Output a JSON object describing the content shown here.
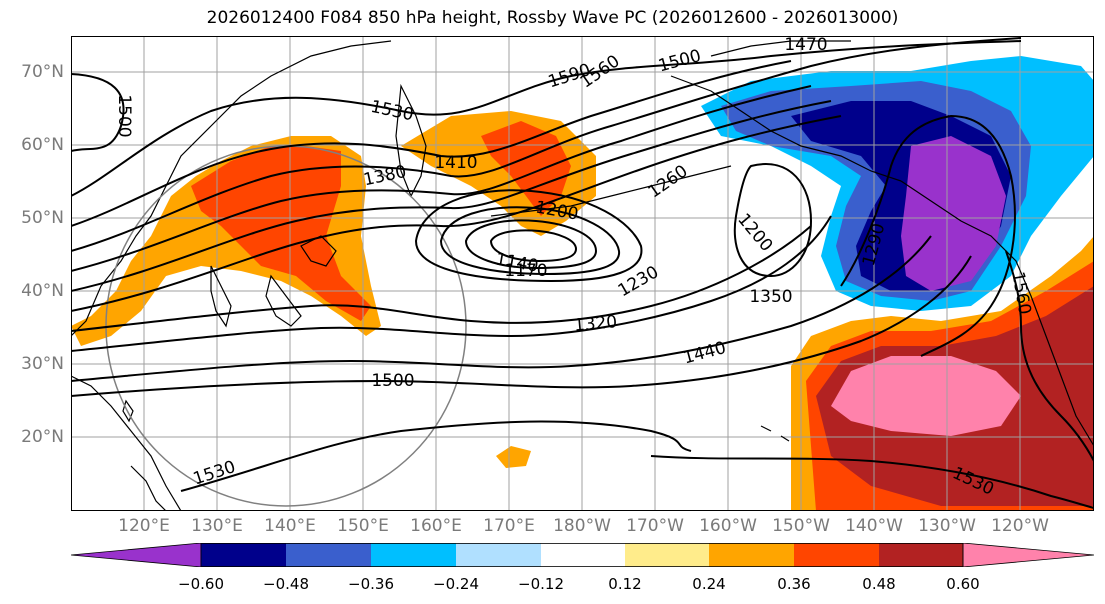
{
  "title": "2026012400 F084 850 hPa height, Rossby Wave PC (2026012600 - 2026013000)",
  "longitude_labels": [
    "120°E",
    "130°E",
    "140°E",
    "150°E",
    "160°E",
    "170°E",
    "180°W",
    "170°W",
    "160°W",
    "150°W",
    "140°W",
    "130°W",
    "120°W"
  ],
  "latitude_labels": [
    "70°N",
    "60°N",
    "50°N",
    "40°N",
    "30°N",
    "20°N"
  ],
  "contour_labels": [
    "1470",
    "1590",
    "1560",
    "1500",
    "1500",
    "1530",
    "1410",
    "1380",
    "1260",
    "1200",
    "1200",
    "1140",
    "1170",
    "1230",
    "1290",
    "1350",
    "1320",
    "1440",
    "1560",
    "1500",
    "1530",
    "1530"
  ],
  "colorbar": {
    "ticks": [
      "−0.60",
      "−0.48",
      "−0.36",
      "−0.24",
      "−0.12",
      "0.12",
      "0.24",
      "0.36",
      "0.48",
      "0.60"
    ],
    "colors": [
      "#9932cc",
      "#00008b",
      "#3a5fcd",
      "#00bfff",
      "#b0e0ff",
      "#ffffff",
      "#ffec8b",
      "#ffa500",
      "#ff4500",
      "#b22222",
      "#ff82ab"
    ]
  },
  "map_colors": {
    "ocean": "#ffffff",
    "coastline": "#000000",
    "grid": "#a0a0a0",
    "contour": "#000000",
    "circle": "#808080"
  }
}
